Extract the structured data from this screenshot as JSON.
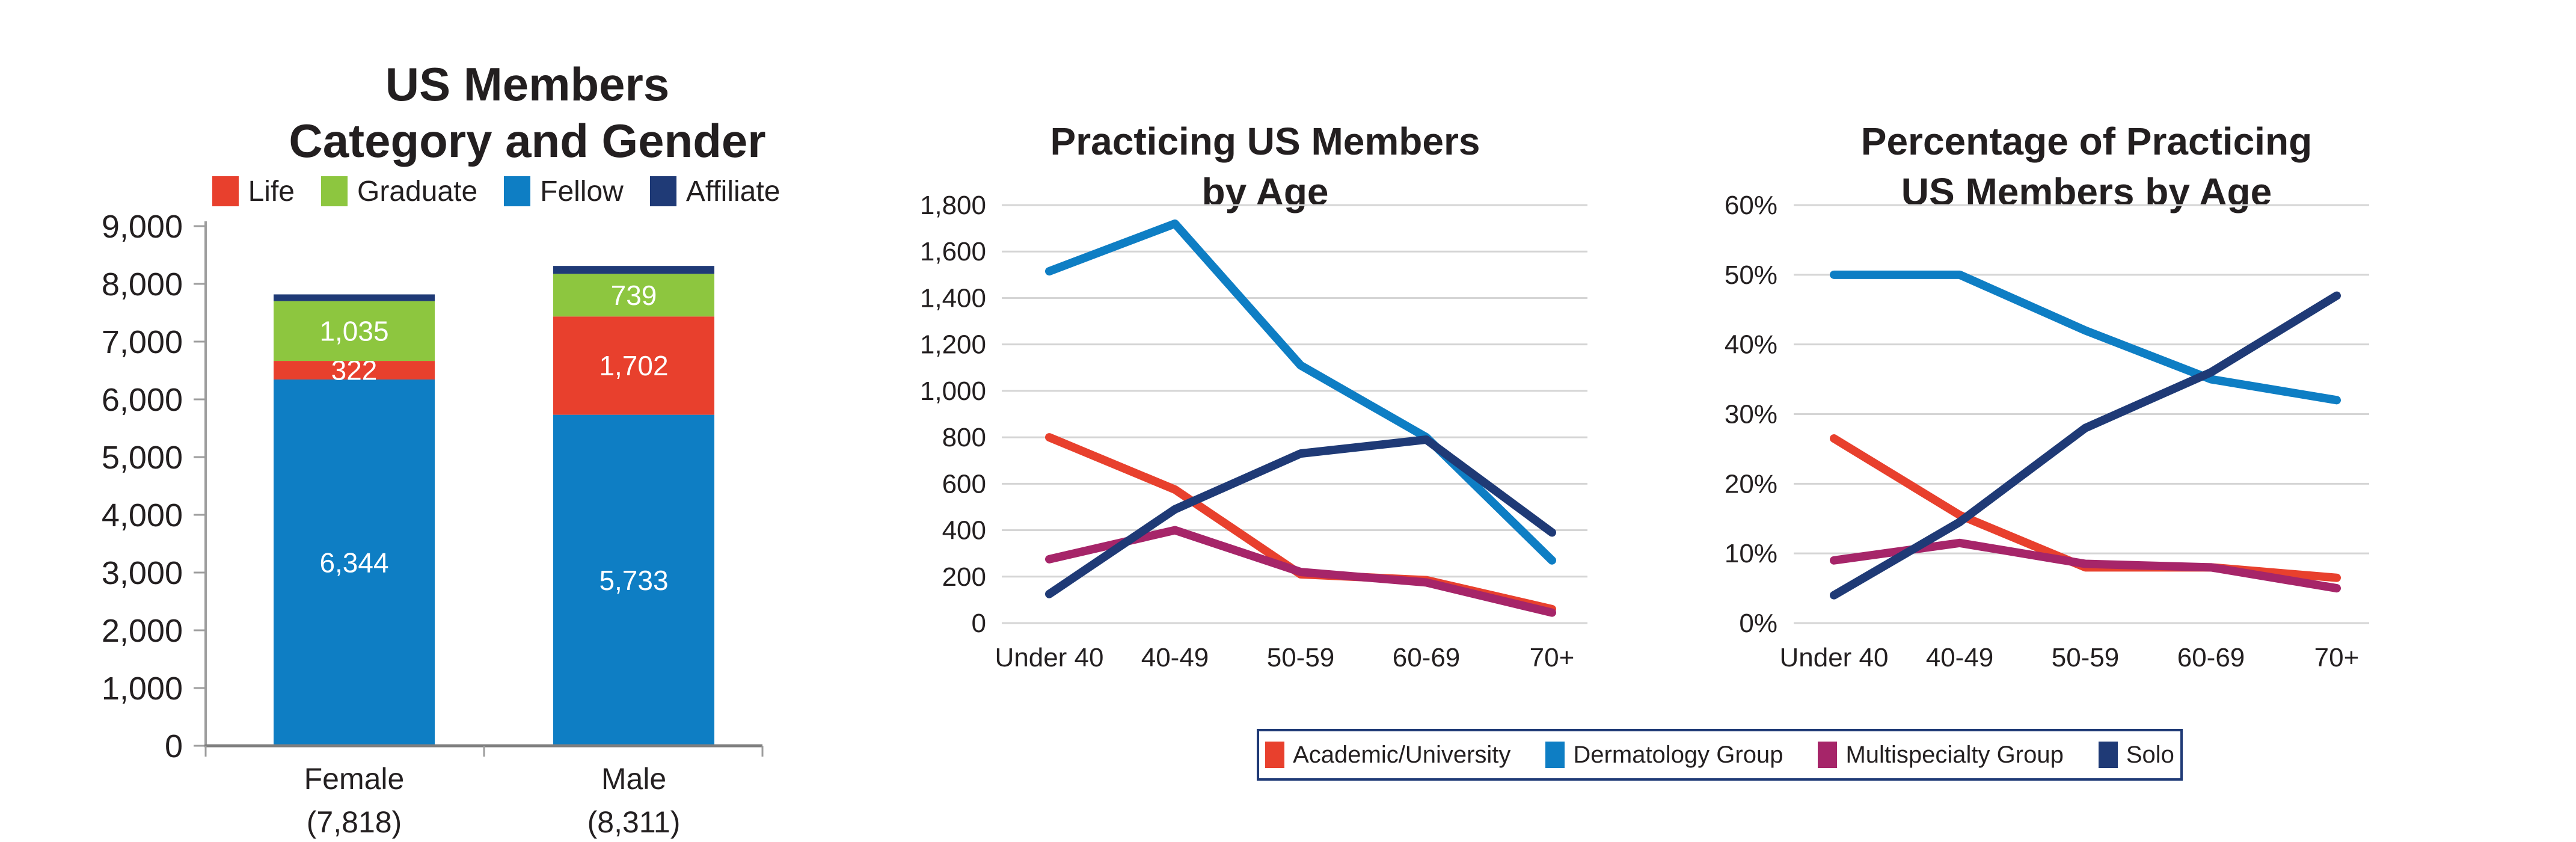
{
  "page": {
    "background": "#FFFFFF"
  },
  "colors": {
    "text": "#231F20",
    "gridline": "#D5D5D5",
    "axis_line": "#9D9D9D",
    "baseline": "#7F7F7F",
    "bar_label_text": "#FFFFFF",
    "legend_border": "#1F3A76"
  },
  "chart_data": [
    {
      "id": "us-members-category-gender",
      "type": "bar",
      "stacked": true,
      "title_lines": [
        "US Members",
        "Category and Gender"
      ],
      "legend_position": "top",
      "legend_order": [
        "Life",
        "Graduate",
        "Fellow",
        "Affiliate"
      ],
      "categories": [
        "Female",
        "Male"
      ],
      "category_totals_labels": [
        "(7,818)",
        "(8,311)"
      ],
      "totals": [
        7818,
        8311
      ],
      "ylim": [
        0,
        9000
      ],
      "ytick_step": 1000,
      "grid": false,
      "series": [
        {
          "name": "Fellow",
          "color": "#0E7EC4",
          "values": [
            6344,
            5733
          ],
          "labels": [
            "6,344",
            "5,733"
          ]
        },
        {
          "name": "Life",
          "color": "#E8402D",
          "values": [
            322,
            1702
          ],
          "labels": [
            "322",
            "1,702"
          ]
        },
        {
          "name": "Graduate",
          "color": "#8DC63F",
          "values": [
            1035,
            739
          ],
          "labels": [
            "1,035",
            "739"
          ]
        },
        {
          "name": "Affiliate",
          "color": "#1F3A76",
          "values": [
            117,
            137
          ],
          "labels": [
            "",
            ""
          ]
        }
      ]
    },
    {
      "id": "practicing-us-members-by-age",
      "type": "line",
      "title_lines": [
        "Practicing US Members",
        "by Age"
      ],
      "categories": [
        "Under 40",
        "40-49",
        "50-59",
        "60-69",
        "70+"
      ],
      "ylim": [
        0,
        1800
      ],
      "ytick_step": 200,
      "percent": false,
      "grid": true,
      "series": [
        {
          "name": "Academic/University",
          "color": "#E8402D",
          "values": [
            800,
            575,
            210,
            185,
            60
          ]
        },
        {
          "name": "Dermatology Group",
          "color": "#0E7EC4",
          "values": [
            1515,
            1720,
            1110,
            800,
            270
          ]
        },
        {
          "name": "Multispecialty Group",
          "color": "#A62569",
          "values": [
            275,
            400,
            220,
            175,
            45
          ]
        },
        {
          "name": "Solo",
          "color": "#1F3A76",
          "values": [
            125,
            490,
            730,
            790,
            390
          ]
        }
      ]
    },
    {
      "id": "percentage-practicing-us-members-by-age",
      "type": "line",
      "title_lines": [
        "Percentage of Practicing",
        "US Members by Age"
      ],
      "categories": [
        "Under 40",
        "40-49",
        "50-59",
        "60-69",
        "70+"
      ],
      "ylim": [
        0,
        60
      ],
      "ytick_step": 10,
      "percent": true,
      "grid": true,
      "series": [
        {
          "name": "Academic/University",
          "color": "#E8402D",
          "values": [
            26.5,
            15.5,
            8,
            8,
            6.5
          ]
        },
        {
          "name": "Dermatology Group",
          "color": "#0E7EC4",
          "values": [
            50,
            50,
            42,
            35,
            32
          ]
        },
        {
          "name": "Multispecialty Group",
          "color": "#A62569",
          "values": [
            9,
            11.5,
            8.5,
            8,
            5
          ]
        },
        {
          "name": "Solo",
          "color": "#1F3A76",
          "values": [
            4,
            14.5,
            28,
            36,
            47
          ]
        }
      ]
    }
  ],
  "bottom_legend": {
    "border_color": "#1F3A76",
    "items": [
      {
        "label": "Academic/University",
        "color": "#E8402D"
      },
      {
        "label": "Dermatology Group",
        "color": "#0E7EC4"
      },
      {
        "label": "Multispecialty Group",
        "color": "#A62569"
      },
      {
        "label": "Solo",
        "color": "#1F3A76"
      }
    ]
  }
}
